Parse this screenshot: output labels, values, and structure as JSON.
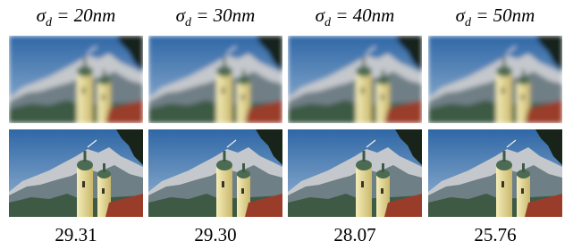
{
  "columns": [
    {
      "header": {
        "symbol": "σ",
        "subscript": "d",
        "rest": " = 20nm"
      },
      "score": "29.31"
    },
    {
      "header": {
        "symbol": "σ",
        "subscript": "d",
        "rest": " = 30nm"
      },
      "score": "29.30"
    },
    {
      "header": {
        "symbol": "σ",
        "subscript": "d",
        "rest": " = 40nm"
      },
      "score": "28.07"
    },
    {
      "header": {
        "symbol": "σ",
        "subscript": "d",
        "rest": " = 50nm"
      },
      "score": "25.76"
    }
  ]
}
